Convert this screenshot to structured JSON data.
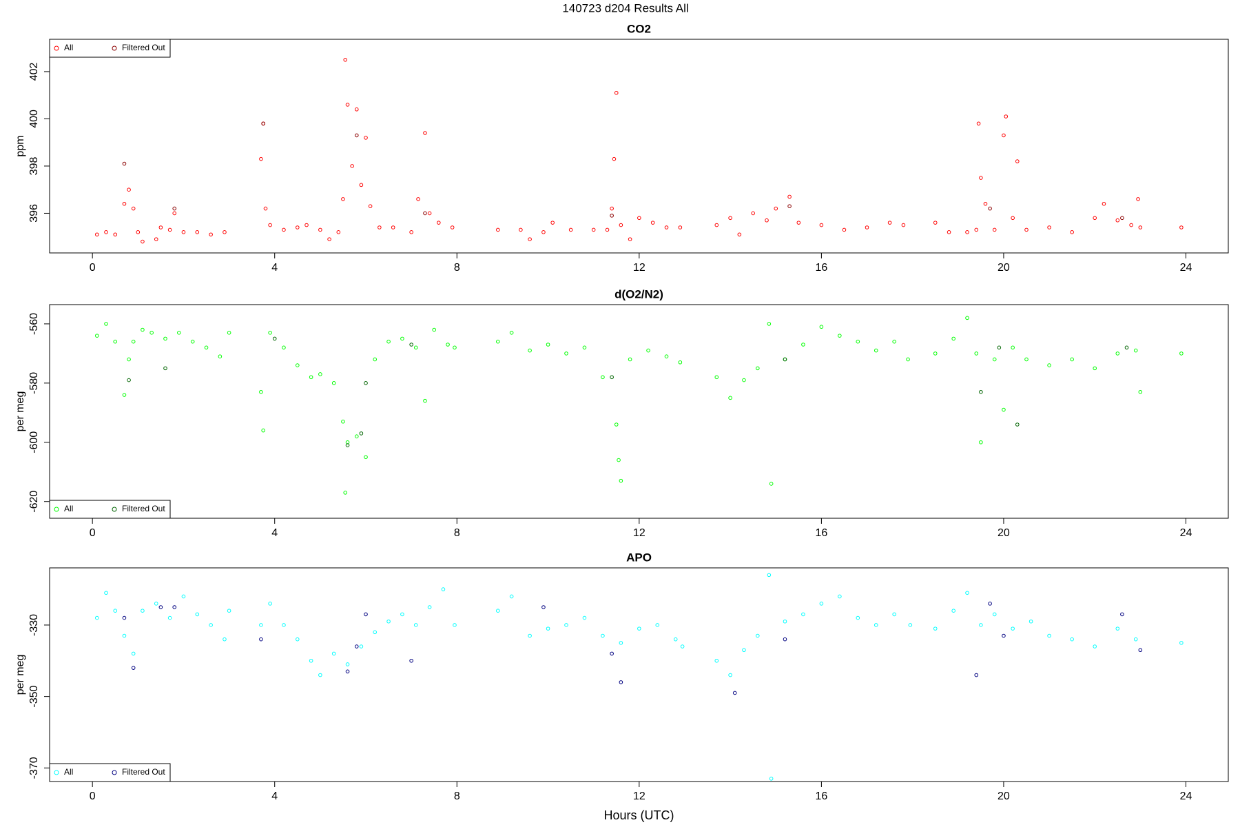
{
  "title": "140723   d204   Results All",
  "chart_data": [
    {
      "type": "scatter",
      "title": "CO2",
      "ylabel": "ppm",
      "legend": "upper left",
      "xlim": [
        -0.94,
        24.93
      ],
      "xticks": [
        0,
        4,
        8,
        12,
        16,
        20,
        24
      ],
      "ylim": [
        394.32,
        403.37
      ],
      "yticks": [
        396,
        398,
        400,
        402
      ],
      "series": [
        {
          "name": "All",
          "color": "#ff0000",
          "x": [
            0.1,
            0.3,
            0.5,
            0.7,
            0.8,
            0.9,
            1.0,
            1.1,
            1.4,
            1.5,
            1.7,
            1.8,
            2.0,
            2.3,
            2.6,
            2.9,
            3.7,
            3.75,
            3.8,
            3.9,
            4.2,
            4.5,
            4.7,
            5.0,
            5.2,
            5.4,
            5.5,
            5.55,
            5.6,
            5.7,
            5.8,
            5.9,
            6.0,
            6.1,
            6.3,
            6.6,
            7.0,
            7.15,
            7.3,
            7.4,
            7.6,
            7.9,
            8.9,
            9.4,
            9.6,
            9.9,
            10.1,
            10.5,
            11.0,
            11.3,
            11.4,
            11.45,
            11.5,
            11.6,
            11.8,
            12.0,
            12.3,
            12.6,
            12.9,
            13.7,
            14.0,
            14.2,
            14.5,
            14.8,
            15.0,
            15.3,
            15.5,
            16.0,
            16.5,
            17.0,
            17.5,
            17.8,
            18.5,
            18.8,
            19.2,
            19.4,
            19.45,
            19.5,
            19.6,
            19.8,
            20.0,
            20.05,
            20.2,
            20.3,
            20.5,
            21.0,
            21.5,
            22.0,
            22.2,
            22.5,
            22.8,
            22.95,
            23.0,
            23.9
          ],
          "values": [
            395.1,
            395.2,
            395.1,
            396.4,
            397,
            396.2,
            395.2,
            394.8,
            394.9,
            395.4,
            395.3,
            396,
            395.2,
            395.2,
            395.1,
            395.2,
            398.3,
            399.8,
            396.2,
            395.5,
            395.3,
            395.4,
            395.5,
            395.3,
            394.9,
            395.2,
            396.6,
            402.5,
            400.6,
            398,
            400.4,
            397.2,
            399.2,
            396.3,
            395.4,
            395.4,
            395.2,
            396.6,
            399.4,
            396,
            395.6,
            395.4,
            395.3,
            395.3,
            394.9,
            395.2,
            395.6,
            395.3,
            395.3,
            395.3,
            396.2,
            398.3,
            401.1,
            395.5,
            394.9,
            395.8,
            395.6,
            395.4,
            395.4,
            395.5,
            395.8,
            395.1,
            396,
            395.7,
            396.2,
            396.7,
            395.6,
            395.5,
            395.3,
            395.4,
            395.6,
            395.5,
            395.6,
            395.2,
            395.2,
            395.3,
            399.8,
            397.5,
            396.4,
            395.3,
            399.3,
            400.1,
            395.8,
            398.2,
            395.3,
            395.4,
            395.2,
            395.8,
            396.4,
            395.7,
            395.5,
            396.6,
            395.4,
            395.4
          ]
        },
        {
          "name": "Filtered Out",
          "color": "#8b0000",
          "x": [
            0.7,
            1.8,
            3.75,
            5.8,
            7.3,
            11.4,
            15.3,
            19.7,
            22.6
          ],
          "values": [
            398.1,
            396.2,
            399.8,
            399.3,
            396,
            395.9,
            396.3,
            396.2,
            395.8
          ]
        }
      ]
    },
    {
      "type": "scatter",
      "title": "d(O2/N2)",
      "ylabel": "per meg",
      "legend": "lower left",
      "xlim": [
        -0.94,
        24.93
      ],
      "xticks": [
        0,
        4,
        8,
        12,
        16,
        20,
        24
      ],
      "ylim": [
        -625.65,
        -553.5
      ],
      "yticks": [
        -620,
        -600,
        -580,
        -560
      ],
      "series": [
        {
          "name": "All",
          "color": "#00ff00",
          "x": [
            0.1,
            0.3,
            0.5,
            0.7,
            0.8,
            0.9,
            1.1,
            1.3,
            1.6,
            1.9,
            2.2,
            2.5,
            2.8,
            3.0,
            3.7,
            3.75,
            3.9,
            4.2,
            4.5,
            4.8,
            5.0,
            5.3,
            5.5,
            5.55,
            5.6,
            5.8,
            6.0,
            6.2,
            6.5,
            6.8,
            7.1,
            7.3,
            7.5,
            7.8,
            7.95,
            8.9,
            9.2,
            9.6,
            10.0,
            10.4,
            10.8,
            11.2,
            11.5,
            11.55,
            11.6,
            11.8,
            12.2,
            12.6,
            12.9,
            13.7,
            14.0,
            14.3,
            14.6,
            14.85,
            14.9,
            15.2,
            15.6,
            16.0,
            16.4,
            16.8,
            17.2,
            17.6,
            17.9,
            18.5,
            18.9,
            19.2,
            19.4,
            19.5,
            19.8,
            20.0,
            20.2,
            20.5,
            21.0,
            21.5,
            22.0,
            22.5,
            22.9,
            23.0,
            23.9
          ],
          "values": [
            -564,
            -560,
            -566,
            -584,
            -572,
            -566,
            -562,
            -563,
            -565,
            -563,
            -566,
            -568,
            -571,
            -563,
            -583,
            -596,
            -563,
            -568,
            -574,
            -578,
            -577,
            -580,
            -593,
            -617,
            -600,
            -598,
            -605,
            -572,
            -566,
            -565,
            -568,
            -586,
            -562,
            -567,
            -568,
            -566,
            -563,
            -569,
            -567,
            -570,
            -568,
            -578,
            -594,
            -606,
            -613,
            -572,
            -569,
            -571,
            -573,
            -578,
            -585,
            -579,
            -575,
            -560,
            -614,
            -572,
            -567,
            -561,
            -564,
            -566,
            -569,
            -566,
            -572,
            -570,
            -565,
            -558,
            -570,
            -600,
            -572,
            -589,
            -568,
            -572,
            -574,
            -572,
            -575,
            -570,
            -569,
            -583,
            -570
          ]
        },
        {
          "name": "Filtered Out",
          "color": "#006400",
          "x": [
            0.8,
            1.6,
            4.0,
            5.6,
            5.9,
            6.0,
            7.0,
            11.4,
            15.2,
            19.5,
            19.9,
            20.3,
            22.7
          ],
          "values": [
            -579,
            -575,
            -565,
            -601,
            -597,
            -580,
            -567,
            -578,
            -572,
            -583,
            -568,
            -594,
            -568
          ]
        }
      ]
    },
    {
      "type": "scatter",
      "title": "APO",
      "ylabel": "per meg",
      "xlabel": "Hours (UTC)",
      "legend": "lower left",
      "xlim": [
        -0.94,
        24.93
      ],
      "xticks": [
        0,
        4,
        8,
        12,
        16,
        20,
        24
      ],
      "ylim": [
        -373.8,
        -314
      ],
      "yticks": [
        -370,
        -350,
        -330
      ],
      "series": [
        {
          "name": "All",
          "color": "#00ffff",
          "x": [
            0.1,
            0.3,
            0.5,
            0.7,
            0.9,
            1.1,
            1.4,
            1.7,
            2.0,
            2.3,
            2.6,
            2.9,
            3.0,
            3.7,
            3.9,
            4.2,
            4.5,
            4.8,
            5.0,
            5.3,
            5.6,
            5.9,
            6.2,
            6.5,
            6.8,
            7.1,
            7.4,
            7.7,
            7.95,
            8.9,
            9.2,
            9.6,
            10.0,
            10.4,
            10.8,
            11.2,
            11.6,
            12.0,
            12.4,
            12.8,
            12.95,
            13.7,
            14.0,
            14.3,
            14.6,
            14.85,
            14.9,
            15.2,
            15.6,
            16.0,
            16.4,
            16.8,
            17.2,
            17.6,
            17.95,
            18.5,
            18.9,
            19.2,
            19.5,
            19.8,
            20.2,
            20.6,
            21.0,
            21.5,
            22.0,
            22.5,
            22.9,
            23.9
          ],
          "values": [
            -328,
            -321,
            -326,
            -333,
            -338,
            -326,
            -324,
            -328,
            -322,
            -327,
            -330,
            -334,
            -326,
            -330,
            -324,
            -330,
            -334,
            -340,
            -344,
            -338,
            -341,
            -336,
            -332,
            -329,
            -327,
            -330,
            -325,
            -320,
            -330,
            -326,
            -322,
            -333,
            -331,
            -330,
            -328,
            -333,
            -335,
            -331,
            -330,
            -334,
            -336,
            -340,
            -344,
            -337,
            -333,
            -316,
            -373,
            -329,
            -327,
            -324,
            -322,
            -328,
            -330,
            -327,
            -330,
            -331,
            -326,
            -321,
            -330,
            -327,
            -331,
            -329,
            -333,
            -334,
            -336,
            -331,
            -334,
            -335
          ]
        },
        {
          "name": "Filtered Out",
          "color": "#000080",
          "x": [
            0.7,
            0.9,
            1.5,
            1.8,
            3.7,
            5.6,
            5.8,
            6.0,
            7.0,
            9.9,
            11.4,
            11.6,
            14.1,
            15.2,
            19.4,
            19.7,
            20.0,
            22.6,
            23.0
          ],
          "values": [
            -328,
            -342,
            -325,
            -325,
            -334,
            -343,
            -336,
            -327,
            -340,
            -325,
            -338,
            -346,
            -349,
            -334,
            -344,
            -324,
            -333,
            -327,
            -337
          ]
        }
      ]
    }
  ]
}
